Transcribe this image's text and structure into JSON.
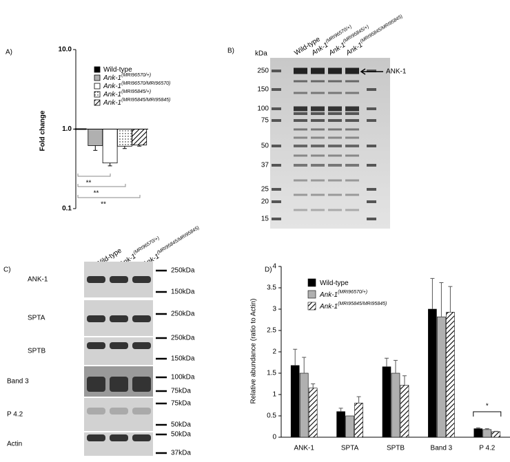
{
  "chart_data": [
    {
      "type": "bar",
      "label": "A)",
      "y_label": "Fold change",
      "log_scale": true,
      "ylim": [
        0.1,
        10
      ],
      "yticks": [
        0.1,
        {
          "value": 1,
          "label": "1.0"
        },
        {
          "value": 10,
          "label": "10.0"
        }
      ],
      "series": [
        {
          "name": "Wild-type",
          "color": "#000000",
          "values": [
            1.0
          ],
          "errors": [
            0
          ]
        },
        {
          "name": "Ank-1",
          "superscript": "(MRI96570/+)",
          "color": "#b0b0b0",
          "values": [
            0.62
          ],
          "errors": [
            0.08
          ]
        },
        {
          "name": "Ank-1",
          "superscript": "(MRI96570/MRI96570)",
          "color": "#ffffff",
          "values": [
            0.375
          ],
          "errors": [
            0.03
          ]
        },
        {
          "name": "Ank-1",
          "superscript": "(MRI95845/+)",
          "color": "#ffffff",
          "pattern": "dots",
          "values": [
            0.61
          ],
          "errors": [
            0.04
          ]
        },
        {
          "name": "Ank-1",
          "superscript": "(MRI95845/MRI95845)",
          "color": "#ffffff",
          "pattern": "hatch",
          "values": [
            0.63
          ],
          "errors": [
            0.02
          ]
        }
      ],
      "annotations": [
        "**",
        "**",
        "**"
      ]
    },
    {
      "type": "bar",
      "label": "D)",
      "y_label": "Relative abundance (ratio to Actin)",
      "categories": [
        "ANK-1",
        "SPTA",
        "SPTB",
        "Band 3",
        "P 4.2"
      ],
      "ylim": [
        0,
        4
      ],
      "yticks": [
        0,
        0.5,
        1,
        1.5,
        2,
        2.5,
        3,
        3.5,
        4
      ],
      "series": [
        {
          "name": "Wild-type",
          "color": "#000000",
          "values": [
            1.68,
            0.6,
            1.65,
            3.0,
            0.2
          ],
          "errors": [
            0.38,
            0.08,
            0.2,
            0.72,
            0.02
          ]
        },
        {
          "name": "Ank-1",
          "superscript": "(MRI96570/+)",
          "color": "#b0b0b0",
          "values": [
            1.5,
            0.5,
            1.5,
            2.82,
            0.18
          ],
          "errors": [
            0.37,
            0,
            0.3,
            0.8,
            0.02
          ]
        },
        {
          "name": "Ank-1",
          "superscript": "(MRI95845/MRI95845)",
          "color": "#ffffff",
          "pattern": "hatch",
          "values": [
            1.15,
            0.8,
            1.22,
            2.93,
            0.13
          ],
          "errors": [
            0.1,
            0.15,
            0.22,
            0.6,
            0.01
          ]
        }
      ],
      "annotations": [
        "*"
      ]
    }
  ],
  "panel_b": {
    "label": "B)",
    "unit": "kDa",
    "arrow_label": "ANK-1",
    "lanes": [
      {
        "name": "Wild-type"
      },
      {
        "name": "Ank-1",
        "superscript": "(MRI96570/+)"
      },
      {
        "name": "Ank-1",
        "superscript": "(MRI95845/+)"
      },
      {
        "name": "Ank-1",
        "superscript": "(MRI95845/MRI95845)"
      }
    ],
    "markers": [
      "250",
      "150",
      "100",
      "75",
      "50",
      "37",
      "25",
      "20",
      "15"
    ]
  },
  "panel_c": {
    "label": "C)",
    "lanes": [
      {
        "name": "Wild-type"
      },
      {
        "name": "Ank-1",
        "superscript": "(MRI96570/+)"
      },
      {
        "name": "Ank-1",
        "superscript": "(MRI95845/MRI95845)"
      }
    ],
    "rows": [
      {
        "name": "ANK-1",
        "markers": [
          "250kDa",
          "150kDa"
        ]
      },
      {
        "name": "SPTA",
        "markers": [
          "250kDa"
        ]
      },
      {
        "name": "SPTB",
        "markers": [
          "250kDa",
          "150kDa"
        ]
      },
      {
        "name": "Band 3",
        "markers": [
          "100kDa",
          "75kDa"
        ]
      },
      {
        "name": "P 4.2",
        "markers": [
          "75kDa",
          "50kDa"
        ]
      },
      {
        "name": "Actin",
        "markers": [
          "50kDa",
          "37kDa"
        ]
      }
    ]
  }
}
